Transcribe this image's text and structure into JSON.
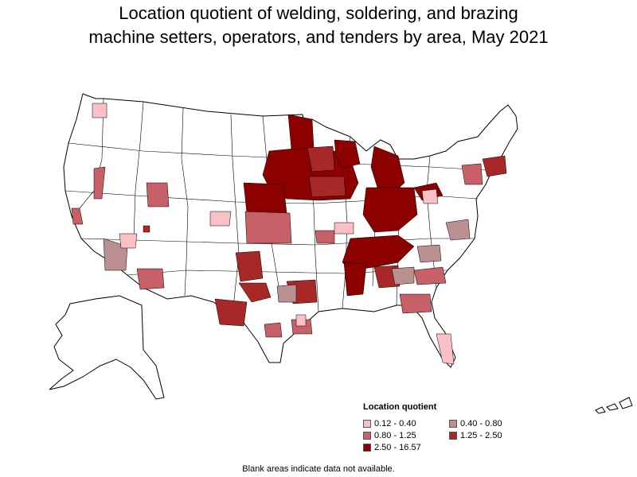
{
  "title": {
    "line1": "Location quotient of welding, soldering, and brazing",
    "line2": "machine setters, operators, and tenders by area, May 2021"
  },
  "legend": {
    "title": "Location quotient",
    "items": [
      {
        "label": "0.12 - 0.40",
        "color": "#f9c0c8"
      },
      {
        "label": "0.40 - 0.80",
        "color": "#bb9090"
      },
      {
        "label": "0.80 - 1.25",
        "color": "#c86068"
      },
      {
        "label": "1.25 - 2.50",
        "color": "#a82828"
      },
      {
        "label": "2.50 - 16.57",
        "color": "#8c0000"
      }
    ]
  },
  "footnote": "Blank areas indicate data not available.",
  "colors": {
    "none": "#ffffff",
    "outline": "#000000"
  }
}
